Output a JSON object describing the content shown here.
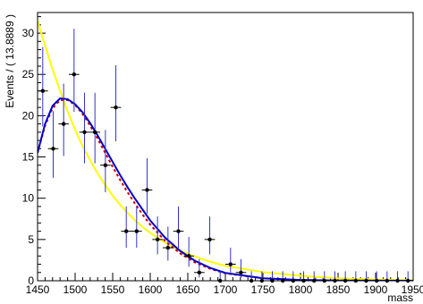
{
  "chart_data": {
    "type": "scatter",
    "title": "",
    "xlabel": "mass",
    "ylabel": "Events / ( 13.8889 )",
    "xlim": [
      1450,
      1950
    ],
    "ylim": [
      0,
      32.5
    ],
    "grid": false,
    "xticks": [
      "1450",
      "1500",
      "1550",
      "1600",
      "1650",
      "1700",
      "1750",
      "1800",
      "1850",
      "1900",
      "1950"
    ],
    "yticks": [
      "0",
      "5",
      "10",
      "15",
      "20",
      "25",
      "30"
    ],
    "bin_width": 13.8889,
    "series": [
      {
        "kind": "data-points",
        "color": "#000000",
        "error_color": "#3333cc",
        "points": [
          {
            "x": 1456.9,
            "y": 23
          },
          {
            "x": 1470.8,
            "y": 16
          },
          {
            "x": 1484.7,
            "y": 19
          },
          {
            "x": 1498.6,
            "y": 25
          },
          {
            "x": 1512.5,
            "y": 18
          },
          {
            "x": 1526.4,
            "y": 18
          },
          {
            "x": 1540.3,
            "y": 14
          },
          {
            "x": 1554.2,
            "y": 21
          },
          {
            "x": 1568.1,
            "y": 6
          },
          {
            "x": 1581.9,
            "y": 6
          },
          {
            "x": 1595.8,
            "y": 11
          },
          {
            "x": 1609.7,
            "y": 5
          },
          {
            "x": 1623.6,
            "y": 4
          },
          {
            "x": 1637.5,
            "y": 6
          },
          {
            "x": 1651.4,
            "y": 3
          },
          {
            "x": 1665.3,
            "y": 1
          },
          {
            "x": 1679.2,
            "y": 5
          },
          {
            "x": 1693.1,
            "y": 0
          },
          {
            "x": 1706.9,
            "y": 2
          },
          {
            "x": 1720.8,
            "y": 1
          },
          {
            "x": 1734.7,
            "y": 0
          },
          {
            "x": 1748.6,
            "y": 0
          },
          {
            "x": 1762.5,
            "y": 0
          },
          {
            "x": 1776.4,
            "y": 0
          },
          {
            "x": 1790.3,
            "y": 0
          },
          {
            "x": 1804.2,
            "y": 0
          },
          {
            "x": 1818.1,
            "y": 0
          },
          {
            "x": 1831.9,
            "y": 0
          },
          {
            "x": 1845.8,
            "y": 0
          },
          {
            "x": 1859.7,
            "y": 0
          },
          {
            "x": 1873.6,
            "y": 0
          },
          {
            "x": 1887.5,
            "y": 0
          },
          {
            "x": 1901.4,
            "y": 0
          },
          {
            "x": 1915.3,
            "y": 0
          },
          {
            "x": 1929.2,
            "y": 0
          },
          {
            "x": 1943.1,
            "y": 0
          }
        ]
      },
      {
        "kind": "curve",
        "color": "#ffff00",
        "dashed": false,
        "x": [
          1450,
          1460,
          1470,
          1480,
          1490,
          1500,
          1510,
          1520,
          1530,
          1540,
          1550,
          1560,
          1570,
          1580,
          1590,
          1600,
          1620,
          1640,
          1660,
          1680,
          1700,
          1750,
          1800,
          1850,
          1900,
          1950
        ],
        "y": [
          31.5,
          28.5,
          25.6,
          23.0,
          20.5,
          18.3,
          16.3,
          14.6,
          13.0,
          11.6,
          10.3,
          9.2,
          8.2,
          7.3,
          6.5,
          5.8,
          4.6,
          3.65,
          2.9,
          2.3,
          1.8,
          1.05,
          0.6,
          0.3,
          0.15,
          0.07
        ]
      },
      {
        "kind": "curve",
        "color": "#cc0000",
        "dashed": true,
        "x": [
          1450,
          1460,
          1470,
          1480,
          1490,
          1500,
          1510,
          1520,
          1530,
          1540,
          1550,
          1560,
          1570,
          1580,
          1590,
          1600,
          1620,
          1640,
          1660,
          1680,
          1700,
          1750,
          1800,
          1850,
          1900,
          1950
        ],
        "y": [
          15.5,
          18.8,
          20.9,
          21.9,
          21.9,
          21.3,
          20.2,
          18.8,
          17.2,
          15.5,
          13.8,
          12.2,
          10.7,
          9.3,
          8.0,
          6.8,
          4.8,
          3.3,
          2.2,
          1.45,
          0.9,
          0.3,
          0.1,
          0.03,
          0.01,
          0.0
        ]
      },
      {
        "kind": "curve",
        "color": "#0000cc",
        "dashed": false,
        "x": [
          1450,
          1460,
          1470,
          1480,
          1490,
          1500,
          1510,
          1520,
          1530,
          1540,
          1550,
          1560,
          1570,
          1580,
          1590,
          1600,
          1620,
          1640,
          1660,
          1680,
          1700,
          1750,
          1800,
          1850,
          1900,
          1950
        ],
        "y": [
          15.5,
          19.0,
          21.2,
          22.1,
          22.0,
          21.4,
          20.4,
          19.1,
          17.6,
          16.0,
          14.4,
          12.8,
          11.3,
          9.9,
          8.6,
          7.3,
          5.2,
          3.6,
          2.4,
          1.55,
          0.95,
          0.3,
          0.1,
          0.03,
          0.01,
          0.0
        ]
      }
    ]
  }
}
